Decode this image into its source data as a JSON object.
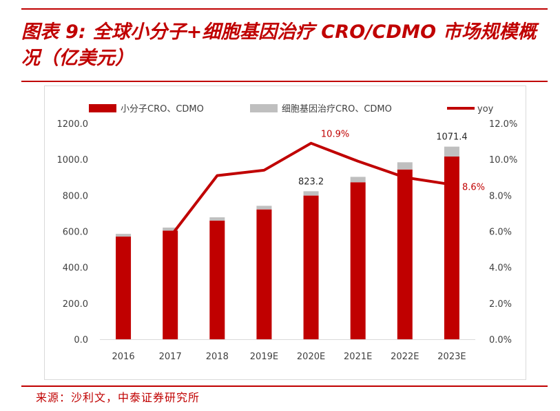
{
  "header": {
    "title": "图表 9: 全球小分子+细胞基因治疗 CRO/CDMO 市场规模概况（亿美元）"
  },
  "footer": {
    "source": "来源：沙利文，中泰证券研究所"
  },
  "colors": {
    "accent": "#c00000",
    "bar_primary": "#c00000",
    "bar_secondary": "#bfbfbf",
    "line": "#c00000",
    "axis_text": "#404040"
  },
  "chart_data": {
    "type": "bar",
    "categories": [
      "2016",
      "2017",
      "2018",
      "2019E",
      "2020E",
      "2021E",
      "2022E",
      "2023E"
    ],
    "series": [
      {
        "name": "小分子CRO、CDMO",
        "kind": "bar",
        "axis": "left",
        "values": [
          571,
          604,
          660,
          722,
          799,
          873,
          944,
          1016
        ]
      },
      {
        "name": "细胞基因治疗CRO、CDMO",
        "kind": "bar",
        "axis": "left",
        "stacked": true,
        "values": [
          15,
          17,
          18,
          20,
          24,
          30,
          40,
          55
        ]
      },
      {
        "name": "yoy",
        "kind": "line",
        "axis": "right",
        "values": [
          null,
          5.7,
          9.1,
          9.4,
          10.9,
          9.9,
          9.0,
          8.6
        ]
      }
    ],
    "left_axis": {
      "ylim": [
        0,
        1200
      ],
      "ticks": [
        "0.0",
        "200.0",
        "400.0",
        "600.0",
        "800.0",
        "1000.0",
        "1200.0"
      ]
    },
    "right_axis": {
      "ylim": [
        0,
        12
      ],
      "unit": "%",
      "ticks": [
        "0.0%",
        "2.0%",
        "4.0%",
        "6.0%",
        "8.0%",
        "10.0%",
        "12.0%"
      ]
    },
    "annotations": [
      {
        "label": "823.2",
        "category_index": 4,
        "axis": "left",
        "target": "bar_total"
      },
      {
        "label": "1071.4",
        "category_index": 7,
        "axis": "left",
        "target": "bar_total"
      },
      {
        "label": "10.9%",
        "category_index": 4,
        "axis": "right",
        "target": "line"
      },
      {
        "label": "8.6%",
        "category_index": 7,
        "axis": "right",
        "target": "line"
      }
    ],
    "legend": {
      "position": "top"
    },
    "grid": false
  }
}
